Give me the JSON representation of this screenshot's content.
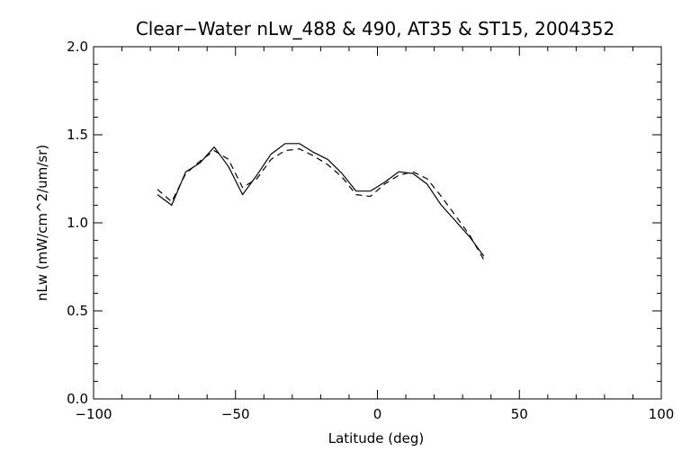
{
  "chart_data": {
    "type": "line",
    "title": "Clear−Water nLw_488 & 490, AT35 & ST15, 2004352",
    "xlabel": "Latitude (deg)",
    "ylabel": "nLw (mW/cm^2/um/sr)",
    "xlim": [
      -100,
      100
    ],
    "ylim": [
      0.0,
      2.0
    ],
    "x_ticks": [
      -100,
      -50,
      0,
      50,
      100
    ],
    "x_tick_labels": [
      "−100",
      "−50",
      "0",
      "50",
      "100"
    ],
    "y_ticks": [
      0.0,
      0.5,
      1.0,
      1.5,
      2.0
    ],
    "y_tick_labels": [
      "0.0",
      "0.5",
      "1.0",
      "1.5",
      "2.0"
    ],
    "grid": false,
    "series": [
      {
        "style": "solid",
        "x": [
          -77.5,
          -72.5,
          -67.5,
          -62.5,
          -57.5,
          -52.5,
          -47.5,
          -42.5,
          -37.5,
          -32.5,
          -27.5,
          -22.5,
          -17.5,
          -12.5,
          -7.5,
          -2.5,
          2.5,
          7.5,
          12.5,
          17.5,
          22.5,
          27.5,
          32.5,
          37.5
        ],
        "y": [
          1.16,
          1.1,
          1.29,
          1.34,
          1.43,
          1.32,
          1.16,
          1.27,
          1.39,
          1.45,
          1.45,
          1.4,
          1.36,
          1.28,
          1.18,
          1.18,
          1.23,
          1.29,
          1.28,
          1.22,
          1.1,
          1.01,
          0.92,
          0.81
        ]
      },
      {
        "style": "dashed",
        "x": [
          -77.5,
          -72.5,
          -67.5,
          -62.5,
          -57.5,
          -52.5,
          -47.5,
          -42.5,
          -37.5,
          -32.5,
          -27.5,
          -22.5,
          -17.5,
          -12.5,
          -7.5,
          -2.5,
          2.5,
          7.5,
          12.5,
          17.5,
          22.5,
          27.5,
          32.5,
          37.5
        ],
        "y": [
          1.19,
          1.12,
          1.28,
          1.35,
          1.41,
          1.36,
          1.2,
          1.25,
          1.36,
          1.41,
          1.42,
          1.38,
          1.33,
          1.26,
          1.16,
          1.15,
          1.22,
          1.27,
          1.29,
          1.25,
          1.15,
          1.04,
          0.93,
          0.79
        ]
      }
    ]
  }
}
